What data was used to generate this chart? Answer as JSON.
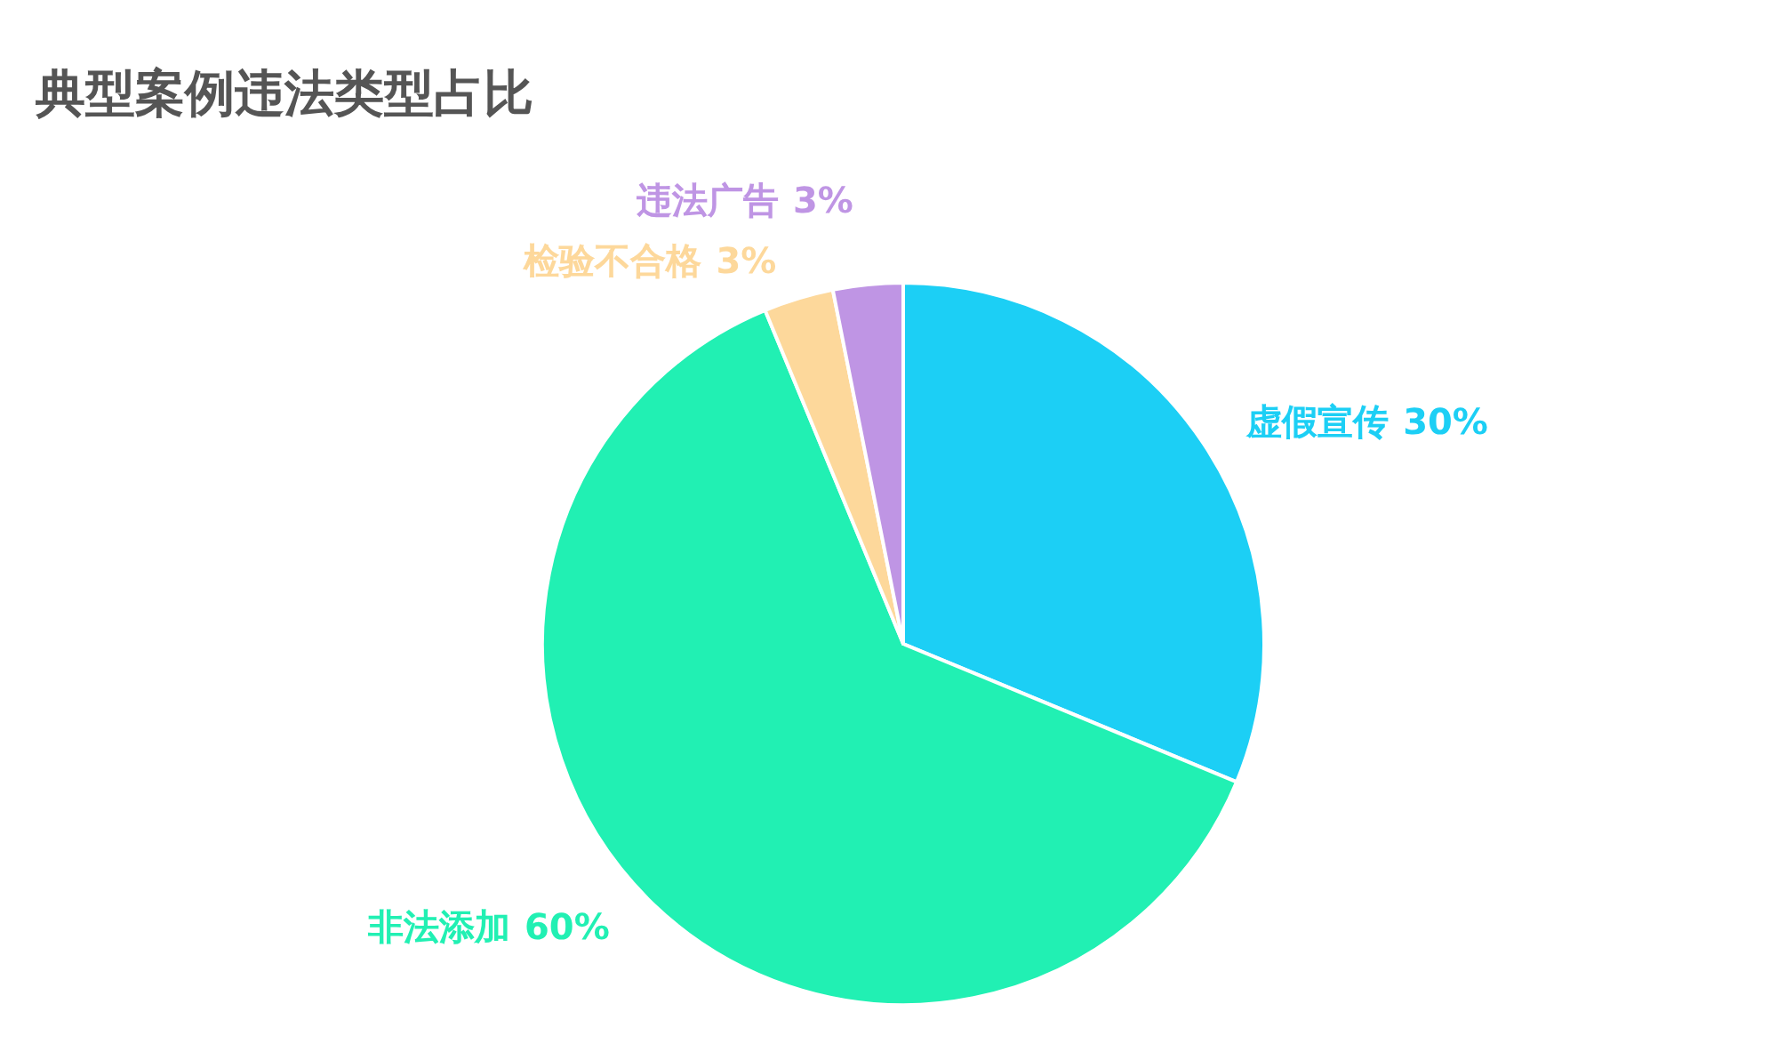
{
  "chart_data": {
    "type": "pie",
    "title": "典型案例违法类型占比",
    "categories": [
      "虚假宣传",
      "非法添加",
      "检验不合格",
      "违法广告"
    ],
    "values": [
      30,
      60,
      3,
      3
    ],
    "value_labels": [
      "30%",
      "60%",
      "3%",
      "3%"
    ],
    "colors": [
      "#1ccff5",
      "#21f0b3",
      "#fdd89b",
      "#bf95e4"
    ]
  }
}
